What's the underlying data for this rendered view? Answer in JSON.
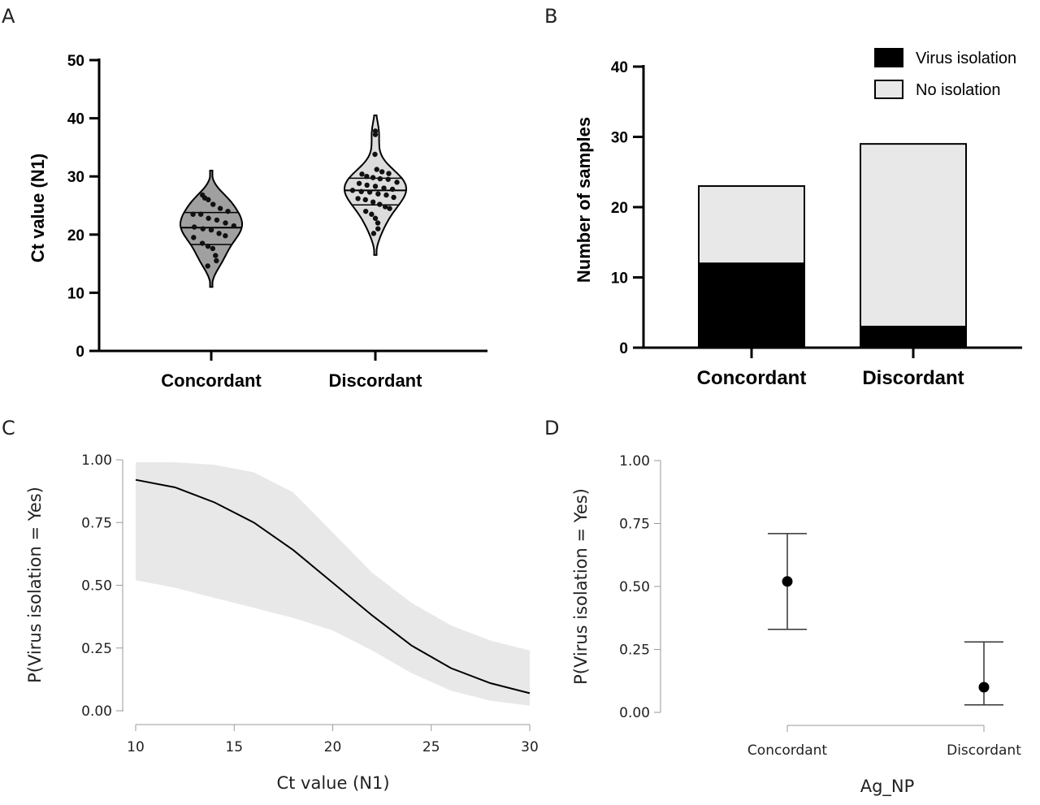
{
  "chart_data": [
    {
      "panel": "A",
      "type": "violin",
      "ylabel": "Ct value (N1)",
      "ylim": [
        0,
        50
      ],
      "yticks": [
        "0",
        "10",
        "20",
        "30",
        "40",
        "50"
      ],
      "categories": [
        "Concordant",
        "Discordant"
      ],
      "violins": [
        {
          "name": "Concordant",
          "color": "#a0a0a0",
          "quartiles": [
            18.3,
            21.2,
            23.8
          ],
          "range": [
            11,
            31
          ],
          "points": [
            26.8,
            26.3,
            26.0,
            25.2,
            24.5,
            24.0,
            23.5,
            23.5,
            22.8,
            22.5,
            22.0,
            21.5,
            21.3,
            21.0,
            20.8,
            20.2,
            19.8,
            19.5,
            18.5,
            18.0,
            17.6,
            16.4,
            15.5,
            14.6
          ]
        },
        {
          "name": "Discordant",
          "color": "#dcdcdc",
          "quartiles": [
            25.1,
            27.6,
            29.7
          ],
          "range": [
            16.5,
            40.5
          ],
          "points": [
            37.8,
            37.2,
            33.8,
            31.2,
            30.8,
            30.5,
            30.4,
            30.0,
            29.8,
            29.6,
            29.5,
            29.0,
            28.8,
            28.5,
            28.3,
            28.0,
            27.8,
            27.6,
            27.4,
            27.3,
            27.0,
            26.8,
            26.4,
            26.2,
            26.0,
            25.6,
            25.2,
            24.8,
            24.5,
            24.0,
            23.5,
            22.8,
            22.0,
            21.0,
            20.2
          ]
        }
      ]
    },
    {
      "panel": "B",
      "type": "stacked-bar",
      "ylabel": "Number of samples",
      "ylim": [
        0,
        40
      ],
      "yticks": [
        "0",
        "10",
        "20",
        "30",
        "40"
      ],
      "categories": [
        "Concordant",
        "Discordant"
      ],
      "series": [
        {
          "name": "Virus isolation",
          "values": [
            12,
            3
          ],
          "color": "#000000"
        },
        {
          "name": "No isolation",
          "values": [
            11,
            26
          ],
          "color": "#e8e8e8"
        }
      ],
      "legend": "top-right"
    },
    {
      "panel": "C",
      "type": "line",
      "xlabel": "Ct value (N1)",
      "ylabel": "P(Virus isolation = Yes)",
      "xlim": [
        10,
        30
      ],
      "ylim": [
        0,
        1
      ],
      "xticks": [
        "10",
        "15",
        "20",
        "25",
        "30"
      ],
      "yticks": [
        "0.00",
        "0.25",
        "0.50",
        "0.75",
        "1.00"
      ],
      "x": [
        10,
        12,
        14,
        16,
        18,
        20,
        22,
        24,
        26,
        28,
        30
      ],
      "series": [
        {
          "values": [
            0.92,
            0.89,
            0.83,
            0.75,
            0.64,
            0.51,
            0.38,
            0.26,
            0.17,
            0.11,
            0.07
          ],
          "color": "#000000"
        }
      ],
      "band_upper": [
        0.99,
        0.99,
        0.98,
        0.95,
        0.87,
        0.71,
        0.55,
        0.43,
        0.34,
        0.28,
        0.24
      ],
      "band_lower": [
        0.52,
        0.49,
        0.45,
        0.41,
        0.37,
        0.32,
        0.24,
        0.15,
        0.08,
        0.04,
        0.02
      ],
      "band_color": "#e8e8e8"
    },
    {
      "panel": "D",
      "type": "errorbar",
      "xlabel": "Ag_NP",
      "ylabel": "P(Virus isolation = Yes)",
      "ylim": [
        0,
        1
      ],
      "yticks": [
        "0.00",
        "0.25",
        "0.50",
        "0.75",
        "1.00"
      ],
      "categories": [
        "Concordant",
        "Discordant"
      ],
      "values": [
        0.52,
        0.1
      ],
      "ci_lower": [
        0.33,
        0.03
      ],
      "ci_upper": [
        0.71,
        0.28
      ]
    }
  ],
  "panel_labels": [
    "A",
    "B",
    "C",
    "D"
  ]
}
